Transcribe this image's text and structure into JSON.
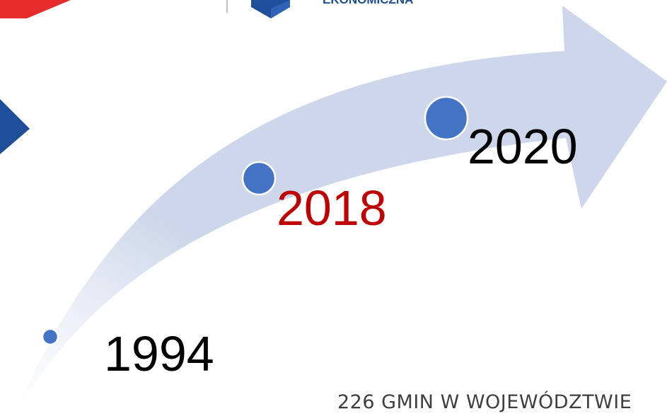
{
  "header": {
    "logo_text": "EKONOMICZNA"
  },
  "timeline": {
    "milestones": [
      {
        "year": "1994",
        "color": "#000000"
      },
      {
        "year": "2018",
        "color": "#c00000"
      },
      {
        "year": "2020",
        "color": "#000000"
      }
    ]
  },
  "footer": {
    "text": "226 GMIN W WOJEWÓDZTWIE"
  },
  "colors": {
    "arrow": "#cdd6ea",
    "dot": "#4472c4",
    "dot_stroke": "#ffffff",
    "brand_red": "#e52d2d",
    "brand_blue": "#1f4e9b"
  }
}
